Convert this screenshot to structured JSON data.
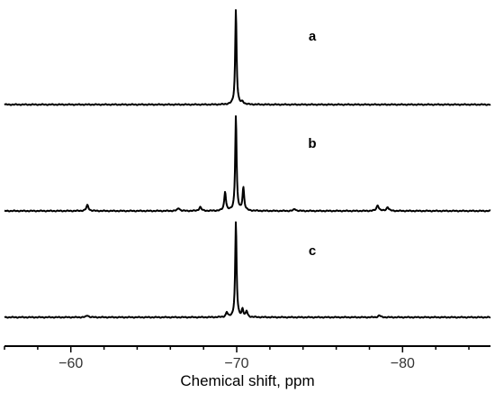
{
  "chart_data": {
    "type": "line",
    "xlabel": "Chemical shift, ppm",
    "xlim": [
      -56,
      -85.3
    ],
    "x_ticks": [
      {
        "value": -60,
        "label": "−60"
      },
      {
        "value": -70,
        "label": "−70"
      },
      {
        "value": -80,
        "label": "−80"
      }
    ],
    "grid": false,
    "series": [
      {
        "name": "a",
        "peaks": [
          {
            "x": -69.95,
            "height": 1.0,
            "width": 0.05
          },
          {
            "x": -70.35,
            "height": 0.025,
            "width": 0.08
          }
        ]
      },
      {
        "name": "b",
        "peaks": [
          {
            "x": -61.0,
            "height": 0.06,
            "width": 0.08
          },
          {
            "x": -66.5,
            "height": 0.03,
            "width": 0.08
          },
          {
            "x": -67.8,
            "height": 0.04,
            "width": 0.08
          },
          {
            "x": -69.3,
            "height": 0.2,
            "width": 0.06
          },
          {
            "x": -69.95,
            "height": 1.0,
            "width": 0.05
          },
          {
            "x": -70.4,
            "height": 0.24,
            "width": 0.06
          },
          {
            "x": -73.5,
            "height": 0.02,
            "width": 0.08
          },
          {
            "x": -78.5,
            "height": 0.06,
            "width": 0.08
          },
          {
            "x": -79.1,
            "height": 0.04,
            "width": 0.08
          }
        ]
      },
      {
        "name": "c",
        "peaks": [
          {
            "x": -61.0,
            "height": 0.02,
            "width": 0.08
          },
          {
            "x": -69.4,
            "height": 0.05,
            "width": 0.06
          },
          {
            "x": -69.95,
            "height": 1.0,
            "width": 0.05
          },
          {
            "x": -70.35,
            "height": 0.08,
            "width": 0.06
          },
          {
            "x": -70.6,
            "height": 0.06,
            "width": 0.06
          },
          {
            "x": -78.6,
            "height": 0.02,
            "width": 0.08
          }
        ]
      }
    ]
  }
}
